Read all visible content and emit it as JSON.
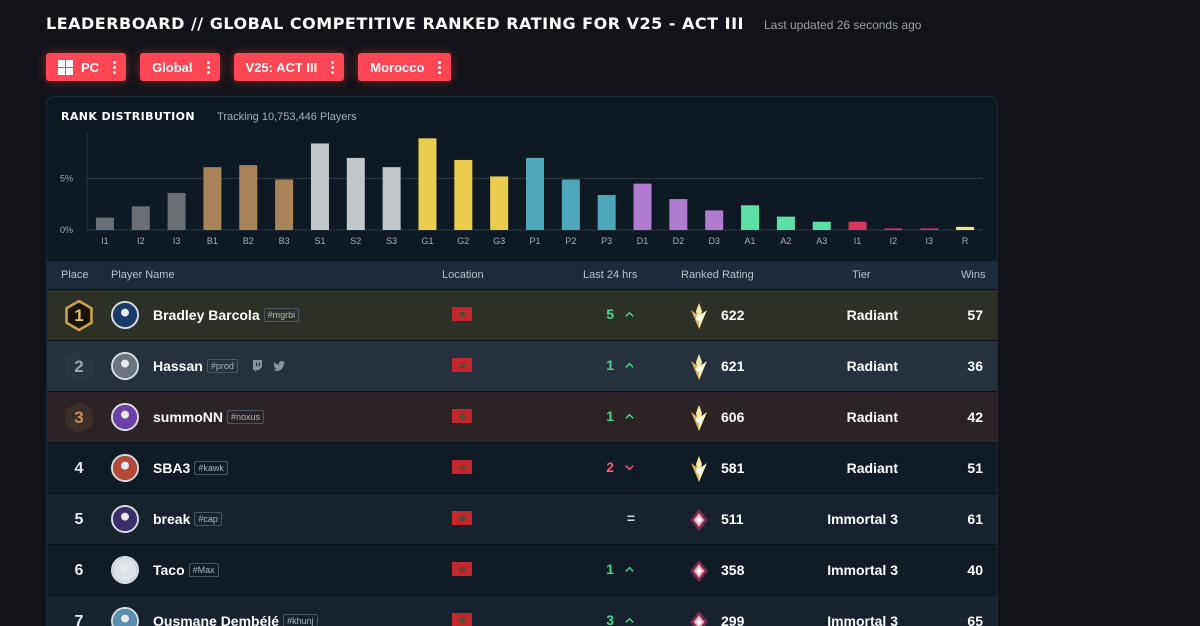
{
  "header": {
    "title": "LEADERBOARD  //  GLOBAL COMPETITIVE RANKED RATING FOR V25 - ACT III",
    "updated": "Last updated 26 seconds ago"
  },
  "filters": [
    {
      "label": "PC",
      "icon": "windows-icon"
    },
    {
      "label": "Global"
    },
    {
      "label": "V25: ACT III"
    },
    {
      "label": "Morocco"
    }
  ],
  "distribution": {
    "title": "RANK DISTRIBUTION",
    "subtitle": "Tracking 10,753,446 Players"
  },
  "chart_data": {
    "type": "bar",
    "title": "RANK DISTRIBUTION",
    "categories": [
      "I1",
      "I2",
      "I3",
      "B1",
      "B2",
      "B3",
      "S1",
      "S2",
      "S3",
      "G1",
      "G2",
      "G3",
      "P1",
      "P2",
      "P3",
      "D1",
      "D2",
      "D3",
      "A1",
      "A2",
      "A3",
      "I1",
      "I2",
      "I3",
      "R"
    ],
    "values": [
      1.2,
      2.3,
      3.6,
      6.1,
      6.3,
      4.9,
      8.4,
      7.0,
      6.1,
      8.9,
      6.8,
      5.2,
      7.0,
      4.9,
      3.4,
      4.5,
      3.0,
      1.9,
      2.4,
      1.3,
      0.8,
      0.8,
      0.15,
      0.15,
      0.3
    ],
    "colors": [
      "#6b6e72",
      "#6b6e72",
      "#6b6e72",
      "#a8845a",
      "#a8845a",
      "#a8845a",
      "#c3c7c9",
      "#c3c7c9",
      "#c3c7c9",
      "#ebcc4e",
      "#ebcc4e",
      "#ebcc4e",
      "#4fa8b8",
      "#4fa8b8",
      "#4fa8b8",
      "#b07ccf",
      "#b07ccf",
      "#b07ccf",
      "#5ce0a8",
      "#5ce0a8",
      "#5ce0a8",
      "#d8365e",
      "#d8365e",
      "#d8365e",
      "#f3e58e"
    ],
    "yticks": [
      "0%",
      "5%"
    ],
    "ylim": [
      0,
      10
    ],
    "grid": true
  },
  "columns": {
    "place": "Place",
    "player": "Player Name",
    "location": "Location",
    "last24": "Last 24 hrs",
    "rating": "Ranked Rating",
    "tier": "Tier",
    "wins": "Wins"
  },
  "rows": [
    {
      "place": "1",
      "badge": "gold",
      "name": "Bradley Barcola",
      "tag": "#mgrbi",
      "change": "5",
      "trend": "up",
      "rating": "622",
      "tier": "Radiant",
      "wins": "57",
      "avatar": "#1a3a6a",
      "bg": "#2c3027"
    },
    {
      "place": "2",
      "badge": "silver",
      "name": "Hassan",
      "tag": "#prod",
      "social": true,
      "change": "1",
      "trend": "up",
      "rating": "621",
      "tier": "Radiant",
      "wins": "36",
      "avatar": "#6c7480",
      "bg": "#26313d"
    },
    {
      "place": "3",
      "badge": "bronze",
      "name": "summoNN",
      "tag": "#noxus",
      "change": "1",
      "trend": "up",
      "rating": "606",
      "tier": "Radiant",
      "wins": "42",
      "avatar": "#6d3fa8",
      "bg": "#2b2325"
    },
    {
      "place": "4",
      "name": "SBA3",
      "tag": "#kawk",
      "change": "2",
      "trend": "down",
      "rating": "581",
      "tier": "Radiant",
      "wins": "51",
      "avatar": "#b64a3a",
      "bg": "#101b25"
    },
    {
      "place": "5",
      "name": "break",
      "tag": "#cap",
      "change": "=",
      "trend": "same",
      "rating": "511",
      "tier": "Immortal 3",
      "wins": "61",
      "avatar": "#3a2f6a",
      "bg": "#17222e"
    },
    {
      "place": "6",
      "name": "Taco",
      "tag": "#Max",
      "change": "1",
      "trend": "up",
      "rating": "358",
      "tier": "Immortal 3",
      "wins": "40",
      "avatar": "#dfe3e8",
      "bg": "#101b25"
    },
    {
      "place": "7",
      "name": "Ousmane Dembélé",
      "tag": "#khunj",
      "change": "3",
      "trend": "up",
      "rating": "299",
      "tier": "Immortal 3",
      "wins": "65",
      "avatar": "#5b8fb0",
      "bg": "#17222e"
    }
  ]
}
